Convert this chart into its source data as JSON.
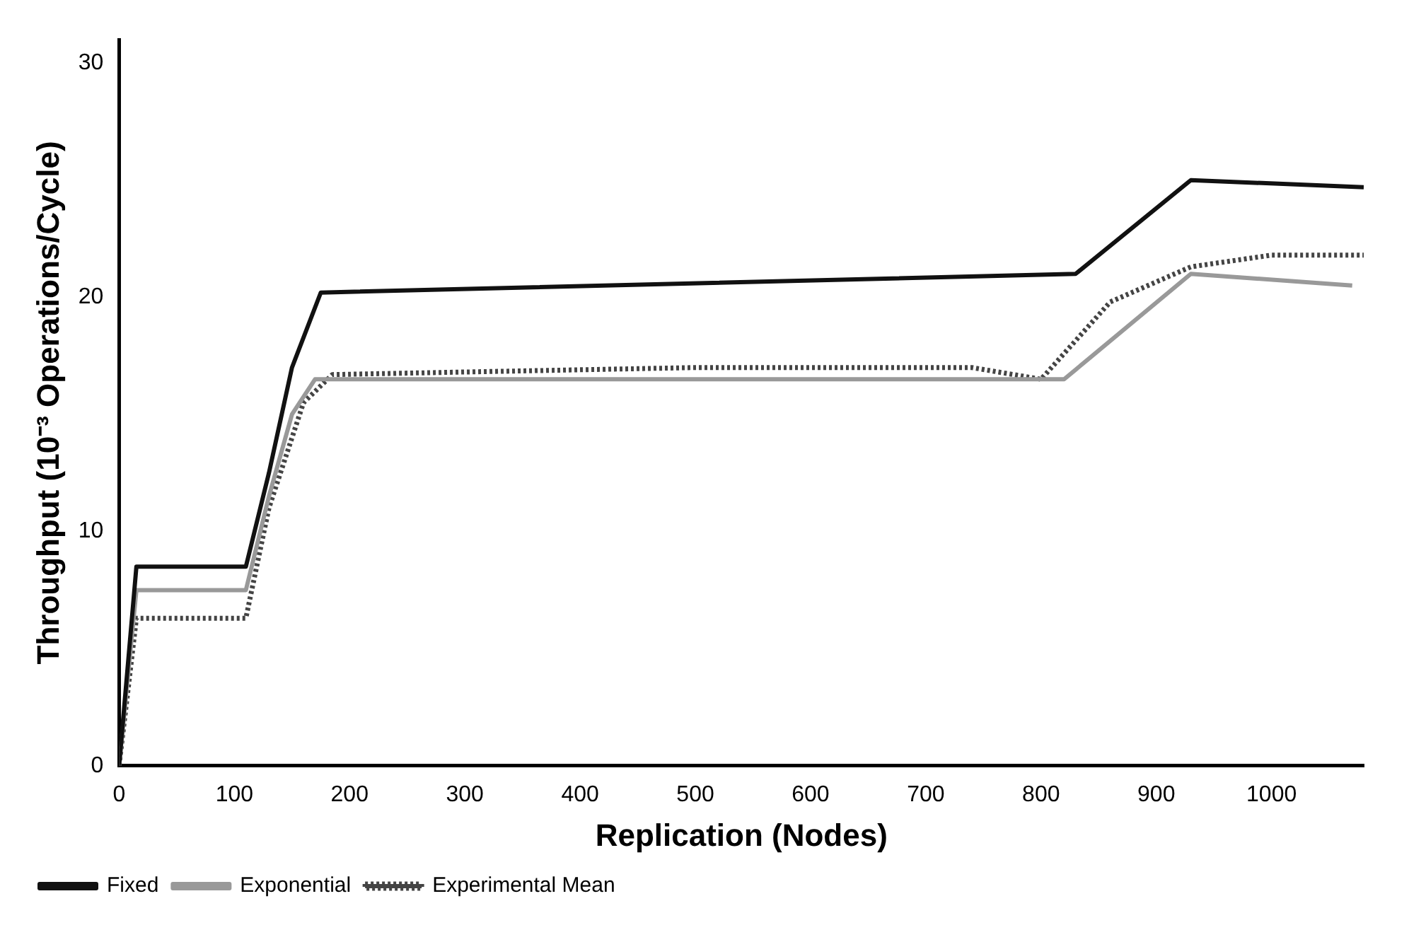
{
  "chart_data": {
    "type": "line",
    "xlabel": "Replication (Nodes)",
    "ylabel": "Throughput (10⁻³ Operations/Cycle)",
    "xlim": [
      0,
      1080
    ],
    "ylim": [
      0,
      31
    ],
    "xticks": [
      0,
      100,
      200,
      300,
      400,
      500,
      600,
      700,
      800,
      900,
      1000
    ],
    "yticks": [
      0,
      10,
      20,
      30
    ],
    "grid": false,
    "legend": "bottom left",
    "marker": "none",
    "series": [
      {
        "name": "Fixed",
        "color": "#111111",
        "line_style": "solid",
        "x": [
          0,
          15,
          110,
          130,
          150,
          175,
          830,
          930,
          1080
        ],
        "values": [
          0,
          8.5,
          8.5,
          12.5,
          17,
          20.2,
          21,
          25,
          24.7
        ]
      },
      {
        "name": "Exponential",
        "color": "#999999",
        "line_style": "solid",
        "x": [
          0,
          15,
          110,
          130,
          150,
          170,
          820,
          930,
          1070
        ],
        "values": [
          0,
          7.5,
          7.5,
          11.5,
          15,
          16.5,
          16.5,
          21,
          20.5
        ]
      },
      {
        "name": "Experimental Mean",
        "color": "#444444",
        "line_style": "dotted",
        "x": [
          0,
          15,
          110,
          130,
          160,
          185,
          500,
          740,
          800,
          860,
          930,
          1000,
          1080
        ],
        "values": [
          0,
          6.3,
          6.3,
          11,
          15.5,
          16.7,
          17,
          17,
          16.5,
          19.8,
          21.3,
          21.8,
          21.8
        ]
      }
    ]
  }
}
